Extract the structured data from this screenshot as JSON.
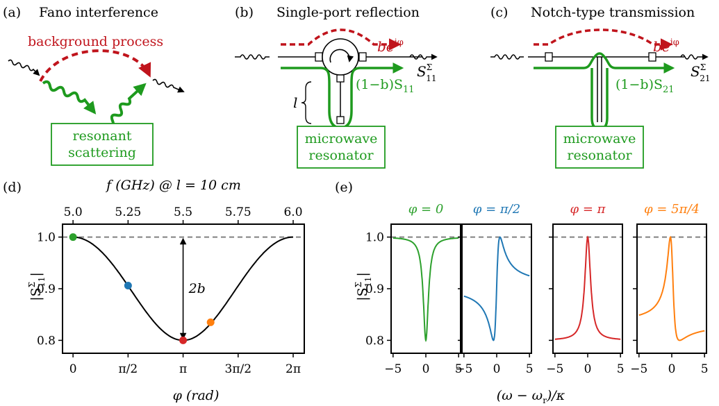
{
  "colors": {
    "green": "#1e9a1e",
    "red": "#c0141c",
    "blue": "#1f77b4",
    "orange": "#ff7f0e",
    "gray": "#808080",
    "black": "#000000"
  },
  "panel_a": {
    "label": "(a)",
    "title": "Fano interference",
    "background_label": "background process",
    "box_line1": "resonant",
    "box_line2": "scattering"
  },
  "panel_b": {
    "label": "(b)",
    "title": "Single-port reflection",
    "bg_term": "be",
    "bg_sup": "iφ",
    "res_term": "(1−b)S",
    "res_sub": "11",
    "total": "S",
    "total_sup": "Σ",
    "total_sub": "11",
    "length_label": "l",
    "box_line1": "microwave",
    "box_line2": "resonator"
  },
  "panel_c": {
    "label": "(c)",
    "title": "Notch-type transmission",
    "bg_term": "be",
    "bg_sup": "iφ",
    "res_term": "(1−b)S",
    "res_sub": "21",
    "total": "S",
    "total_sup": "Σ",
    "total_sub": "21",
    "box_line1": "microwave",
    "box_line2": "resonator"
  },
  "panel_d": {
    "label": "(d)",
    "top_axis_label": "f (GHz) @ l = 10 cm",
    "annotation": "2b",
    "ylabel": "|S",
    "ylabel_sup": "Σ",
    "ylabel_sub": "11",
    "xlabel": "φ (rad)"
  },
  "panel_e": {
    "label": "(e)",
    "xlabel": "(ω − ω",
    "xlabel_sub": "r",
    "xlabel_end": ")/κ",
    "ylabel": "|S",
    "ylabel_sup": "Σ",
    "ylabel_sub": "11"
  },
  "chart_data": [
    {
      "type": "line",
      "panel": "d",
      "function": "|S11^Σ|(φ) = sqrt(1 − 2b(1−b)(1 − cos φ)), b = 0.1",
      "b": 0.1,
      "x": [
        0,
        0.7854,
        1.5708,
        2.3562,
        3.1416,
        3.927,
        4.7124,
        5.4978,
        6.2832
      ],
      "y": [
        1.0,
        0.972,
        0.906,
        0.835,
        0.8,
        0.835,
        0.906,
        0.972,
        1.0
      ],
      "xlim": [
        -0.3,
        6.6
      ],
      "ylim": [
        0.775,
        1.025
      ],
      "xticks": [
        "0",
        "π/2",
        "π",
        "3π/2",
        "2π"
      ],
      "xtick_values": [
        0,
        1.5708,
        3.1416,
        4.7124,
        6.2832
      ],
      "yticks": [
        "0.8",
        "0.9",
        "1.0"
      ],
      "ytick_values": [
        0.8,
        0.9,
        1.0
      ],
      "top_ticks": [
        "5.0",
        "5.25",
        "5.5",
        "5.75",
        "6.0"
      ],
      "top_tick_values": [
        0,
        1.5708,
        3.1416,
        4.7124,
        6.2832
      ],
      "reference_line": 1.0,
      "markers": [
        {
          "x": 0,
          "y": 1.0,
          "color": "#2ca02c"
        },
        {
          "x": 1.5708,
          "y": 0.906,
          "color": "#1f77b4"
        },
        {
          "x": 3.1416,
          "y": 0.8,
          "color": "#d62728"
        },
        {
          "x": 3.927,
          "y": 0.835,
          "color": "#ff7f0e"
        }
      ]
    },
    {
      "type": "line",
      "panel": "e",
      "xlim": [
        -5.3,
        5.3
      ],
      "ylim": [
        0.775,
        1.025
      ],
      "xticks": [
        "−5",
        "0",
        "5"
      ],
      "xtick_values": [
        -5,
        0,
        5
      ],
      "yticks": [
        "0.8",
        "0.9",
        "1.0"
      ],
      "ytick_values": [
        0.8,
        0.9,
        1.0
      ],
      "reference_line": 1.0,
      "b": 0.1,
      "series": [
        {
          "name": "φ = 0",
          "phi": 0,
          "color": "#2ca02c"
        },
        {
          "name": "φ = π/2",
          "phi": 1.5708,
          "color": "#1f77b4"
        },
        {
          "name": "φ = π",
          "phi": 3.1416,
          "color": "#d62728"
        },
        {
          "name": "φ = 5π/4",
          "phi": 3.927,
          "color": "#ff7f0e"
        }
      ]
    }
  ]
}
